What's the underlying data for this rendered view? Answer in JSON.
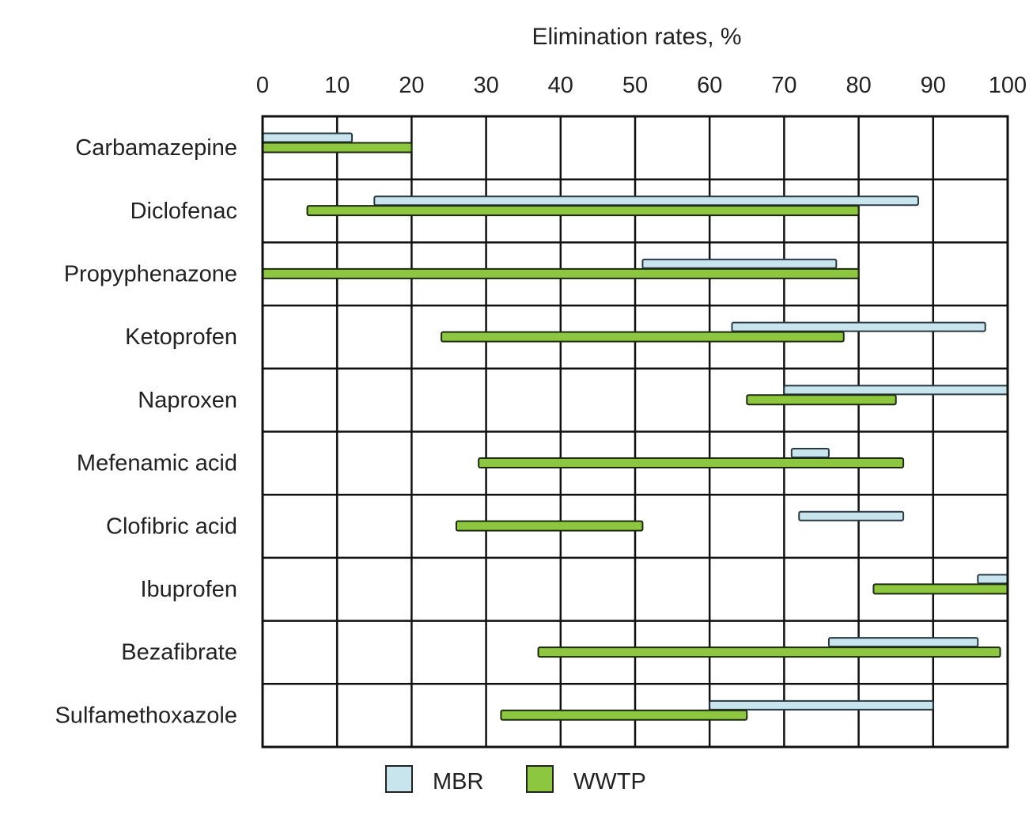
{
  "chart_data": {
    "type": "bar",
    "subtype": "floating-range-horizontal",
    "title": "Elimination rates, %",
    "xlabel": "Elimination rates, %",
    "ylabel": "",
    "xlim": [
      0,
      100
    ],
    "xticks": [
      0,
      10,
      20,
      30,
      40,
      50,
      60,
      70,
      80,
      90,
      100
    ],
    "grid": true,
    "legend_position": "bottom",
    "categories": [
      "Carbamazepine",
      "Diclofenac",
      "Propyphenazone",
      "Ketoprofen",
      "Naproxen",
      "Mefenamic acid",
      "Clofibric acid",
      "Ibuprofen",
      "Bezafibrate",
      "Sulfamethoxazole"
    ],
    "series": [
      {
        "name": "MBR",
        "color": "#c8e4ec",
        "ranges": [
          [
            0,
            12
          ],
          [
            15,
            88
          ],
          [
            51,
            77
          ],
          [
            63,
            97
          ],
          [
            70,
            100
          ],
          [
            71,
            76
          ],
          [
            72,
            86
          ],
          [
            96,
            100
          ],
          [
            76,
            96
          ],
          [
            60,
            90
          ]
        ]
      },
      {
        "name": "WWTP",
        "color": "#8dc63f",
        "ranges": [
          [
            0,
            20
          ],
          [
            6,
            80
          ],
          [
            0,
            80
          ],
          [
            24,
            78
          ],
          [
            65,
            85
          ],
          [
            29,
            86
          ],
          [
            26,
            51
          ],
          [
            82,
            100
          ],
          [
            37,
            99
          ],
          [
            32,
            65
          ]
        ]
      }
    ]
  }
}
